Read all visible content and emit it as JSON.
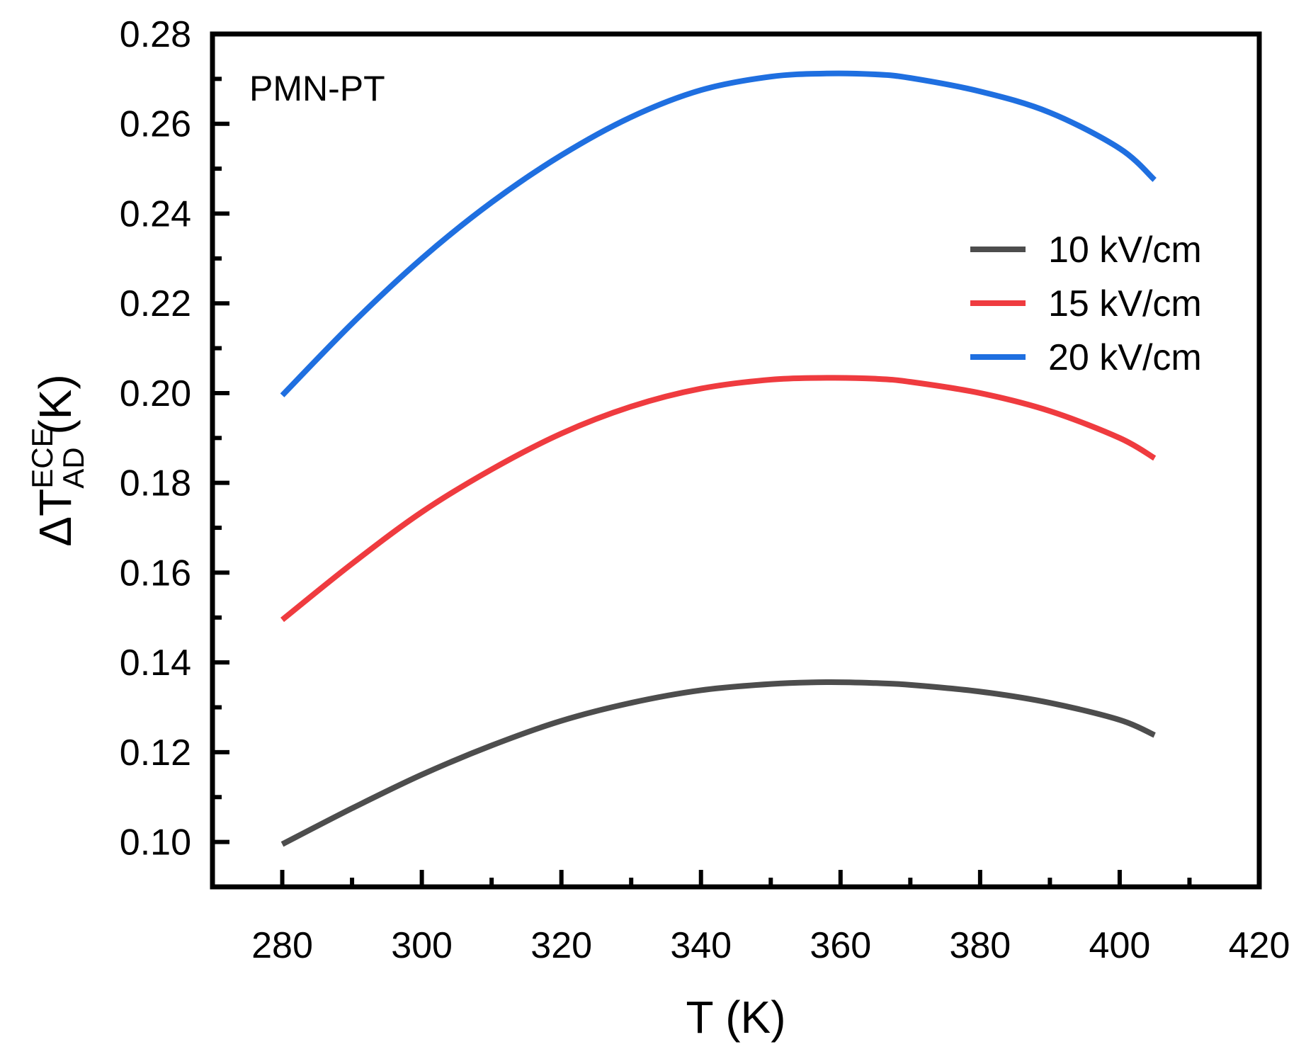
{
  "chart_data": {
    "type": "line",
    "title": "",
    "annotation": "PMN-PT",
    "xlabel": "T (K)",
    "ylabel": {
      "prefix": "ΔT",
      "superscript": "ECE",
      "subscript": "AD",
      "suffix": " (K)"
    },
    "xlim": [
      270,
      420
    ],
    "ylim": [
      0.09,
      0.28
    ],
    "xticks": [
      280,
      300,
      320,
      340,
      360,
      380,
      400,
      420
    ],
    "xtick_labels": [
      "280",
      "300",
      "320",
      "340",
      "360",
      "380",
      "400",
      "420"
    ],
    "yticks": [
      0.1,
      0.12,
      0.14,
      0.16,
      0.18,
      0.2,
      0.22,
      0.24,
      0.26,
      0.28
    ],
    "ytick_labels": [
      "0.10",
      "0.12",
      "0.14",
      "0.16",
      "0.18",
      "0.20",
      "0.22",
      "0.24",
      "0.26",
      "0.28"
    ],
    "legend_position": "upper-right",
    "x": [
      280,
      290,
      300,
      310,
      320,
      330,
      340,
      350,
      358,
      365,
      370,
      380,
      390,
      400,
      405
    ],
    "series": [
      {
        "name": "10 kV/cm",
        "color": "#4d4d4d",
        "values": [
          0.0995,
          0.1075,
          0.115,
          0.1215,
          0.127,
          0.131,
          0.1338,
          0.1352,
          0.1356,
          0.1354,
          0.135,
          0.1335,
          0.131,
          0.1272,
          0.1238
        ]
      },
      {
        "name": "15 kV/cm",
        "color": "#ef3b3f",
        "values": [
          0.1495,
          0.162,
          0.1735,
          0.183,
          0.191,
          0.197,
          0.201,
          0.203,
          0.2034,
          0.2032,
          0.2025,
          0.2,
          0.196,
          0.19,
          0.1855
        ]
      },
      {
        "name": "20 kV/cm",
        "color": "#1f6fe0",
        "values": [
          0.1995,
          0.2155,
          0.23,
          0.2425,
          0.253,
          0.2615,
          0.2675,
          0.2705,
          0.2712,
          0.271,
          0.2702,
          0.2672,
          0.2625,
          0.2545,
          0.2475
        ]
      }
    ]
  }
}
